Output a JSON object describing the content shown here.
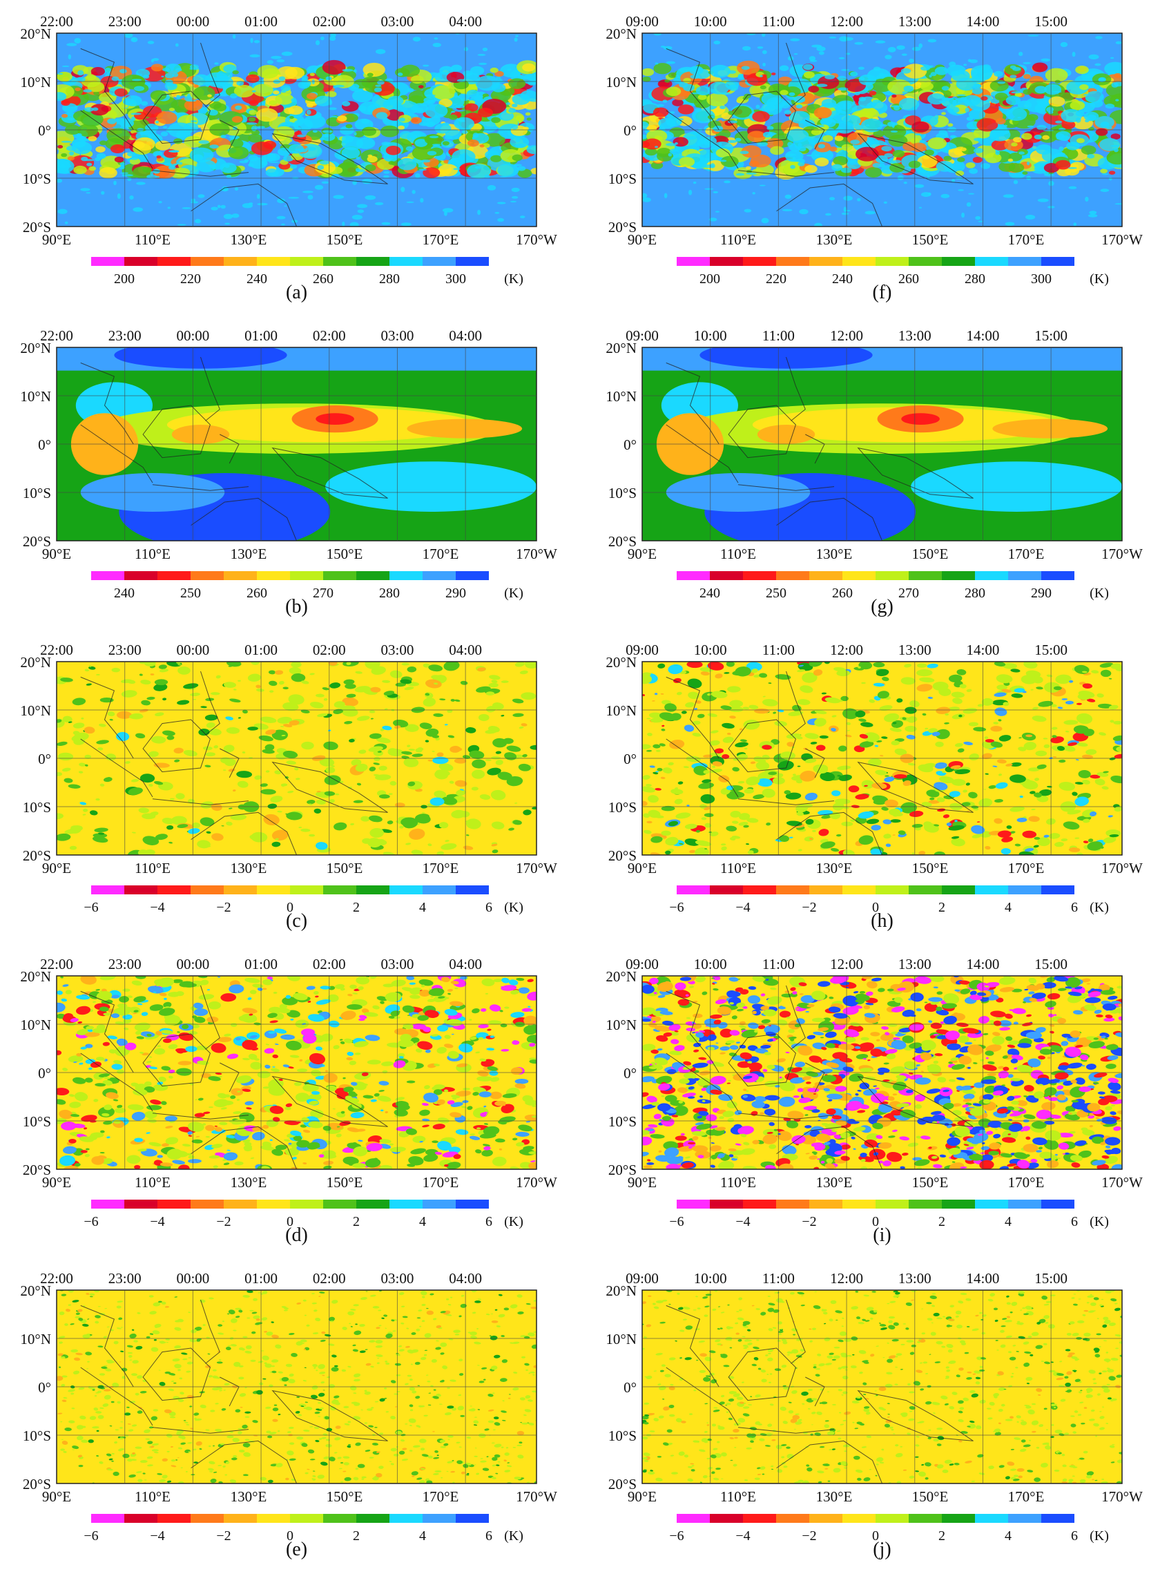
{
  "figure": {
    "lat_labels": [
      "20°N",
      "10°N",
      "0°",
      "10°S",
      "20°S"
    ],
    "lon_labels": [
      "90°E",
      "110°E",
      "130°E",
      "150°E",
      "170°E",
      "170°W"
    ],
    "unit": "(K)",
    "time_sets": {
      "left": [
        "22:00",
        "23:00",
        "00:00",
        "01:00",
        "02:00",
        "03:00",
        "04:00"
      ],
      "right": [
        "09:00",
        "10:00",
        "11:00",
        "12:00",
        "13:00",
        "14:00",
        "15:00"
      ]
    },
    "color_scales": {
      "bt": {
        "ticks": [
          "200",
          "220",
          "240",
          "260",
          "280",
          "300"
        ],
        "colors": [
          "#ff2bff",
          "#d9002a",
          "#ff1a1a",
          "#ff7a1a",
          "#ffb21a",
          "#ffe51a",
          "#bff01a",
          "#4fc21a",
          "#16a416",
          "#1ad9ff",
          "#3da1ff",
          "#1a4dff"
        ]
      },
      "bt2": {
        "ticks": [
          "240",
          "250",
          "260",
          "270",
          "280",
          "290"
        ],
        "colors": [
          "#ff2bff",
          "#d9002a",
          "#ff1a1a",
          "#ff7a1a",
          "#ffb21a",
          "#ffe51a",
          "#bff01a",
          "#4fc21a",
          "#16a416",
          "#1ad9ff",
          "#3da1ff",
          "#1a4dff"
        ]
      },
      "diff": {
        "ticks": [
          "−6",
          "−4",
          "−2",
          "0",
          "2",
          "4",
          "6"
        ],
        "colors": [
          "#ff2bff",
          "#d9002a",
          "#ff1a1a",
          "#ff7a1a",
          "#ffb21a",
          "#ffe51a",
          "#bff01a",
          "#4fc21a",
          "#16a416",
          "#1ad9ff",
          "#3da1ff",
          "#1a4dff"
        ]
      }
    },
    "panels": [
      {
        "id": "a",
        "label": "(a)",
        "times": "left",
        "scale": "bt",
        "style": "bt"
      },
      {
        "id": "f",
        "label": "(f)",
        "times": "right",
        "scale": "bt",
        "style": "bt"
      },
      {
        "id": "b",
        "label": "(b)",
        "times": "left",
        "scale": "bt2",
        "style": "smooth"
      },
      {
        "id": "g",
        "label": "(g)",
        "times": "right",
        "scale": "bt2",
        "style": "smooth"
      },
      {
        "id": "c",
        "label": "(c)",
        "times": "left",
        "scale": "diff",
        "style": "diff1"
      },
      {
        "id": "h",
        "label": "(h)",
        "times": "right",
        "scale": "diff",
        "style": "diff2"
      },
      {
        "id": "d",
        "label": "(d)",
        "times": "left",
        "scale": "diff",
        "style": "diff3"
      },
      {
        "id": "i",
        "label": "(i)",
        "times": "right",
        "scale": "diff",
        "style": "diff4"
      },
      {
        "id": "e",
        "label": "(e)",
        "times": "left",
        "scale": "diff",
        "style": "diff5"
      },
      {
        "id": "j",
        "label": "(j)",
        "times": "right",
        "scale": "diff",
        "style": "diff5"
      }
    ]
  }
}
